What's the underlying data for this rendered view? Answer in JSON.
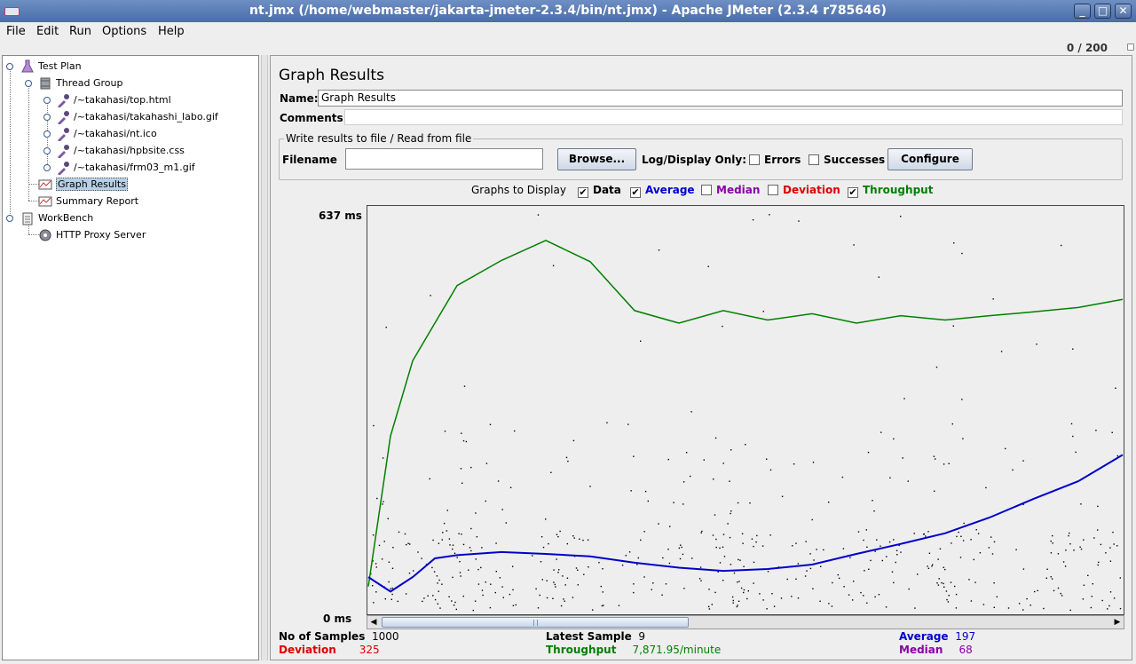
{
  "window": {
    "title": "nt.jmx (/home/webmaster/jakarta-jmeter-2.3.4/bin/nt.jmx) - Apache JMeter (2.3.4 r785646)",
    "buttons": [
      "_",
      "□",
      "✕"
    ]
  },
  "menu": [
    "File",
    "Edit",
    "Run",
    "Options",
    "Help"
  ],
  "progress_counter": "0 / 200",
  "tree": {
    "test_plan": "Test Plan",
    "thread_group": "Thread Group",
    "samplers": [
      "/~takahasi/top.html",
      "/~takahasi/takahashi_labo.gif",
      "/~takahasi/nt.ico",
      "/~takahasi/hpbsite.css",
      "/~takahasi/frm03_m1.gif"
    ],
    "graph_results": "Graph Results",
    "summary_report": "Summary Report",
    "workbench": "WorkBench",
    "proxy": "HTTP Proxy Server"
  },
  "panel": {
    "title": "Graph Results",
    "name_label": "Name:",
    "name_value": "Graph Results",
    "comments_label": "Comments:",
    "file_group_title": "Write results to file / Read from file",
    "filename_label": "Filename",
    "filename_value": "",
    "browse_label": "Browse...",
    "log_display_label": "Log/Display Only:",
    "errors_label": "Errors",
    "successes_label": "Successes",
    "configure_label": "Configure",
    "graphs_to_display_label": "Graphs to Display",
    "graph_options": [
      {
        "label": "Data",
        "checked": true,
        "color": "#000000"
      },
      {
        "label": "Average",
        "checked": true,
        "color": "#0000cc"
      },
      {
        "label": "Median",
        "checked": false,
        "color": "#8a00a8"
      },
      {
        "label": "Deviation",
        "checked": false,
        "color": "#dd0000"
      },
      {
        "label": "Throughput",
        "checked": true,
        "color": "#008000"
      }
    ]
  },
  "stats": {
    "samples_label": "No of Samples",
    "samples_value": "1000",
    "latest_label": "Latest Sample",
    "latest_value": "9",
    "average_label": "Average",
    "average_value": "197",
    "deviation_label": "Deviation",
    "deviation_value": "325",
    "throughput_label": "Throughput",
    "throughput_value": "7,871.95/minute",
    "median_label": "Median",
    "median_value": "68"
  },
  "chart_data": {
    "type": "line",
    "ytop_label": "637 ms",
    "ybottom_label": "0 ms",
    "ylim": [
      0,
      637
    ],
    "x": [
      0,
      25,
      50,
      75,
      100,
      150,
      200,
      250,
      300,
      350,
      400,
      450,
      500,
      550,
      600,
      650,
      700,
      750,
      800,
      850
    ],
    "series": [
      {
        "name": "Throughput",
        "color": "#008000",
        "values": [
          40,
          280,
          400,
          460,
          520,
          560,
          592,
          558,
          480,
          460,
          480,
          465,
          475,
          460,
          472,
          465,
          472,
          478,
          485,
          498
        ]
      },
      {
        "name": "Average",
        "color": "#0000cc",
        "values": [
          55,
          32,
          55,
          85,
          90,
          95,
          92,
          88,
          78,
          70,
          65,
          68,
          75,
          92,
          108,
          125,
          150,
          180,
          208,
          250
        ]
      }
    ]
  }
}
